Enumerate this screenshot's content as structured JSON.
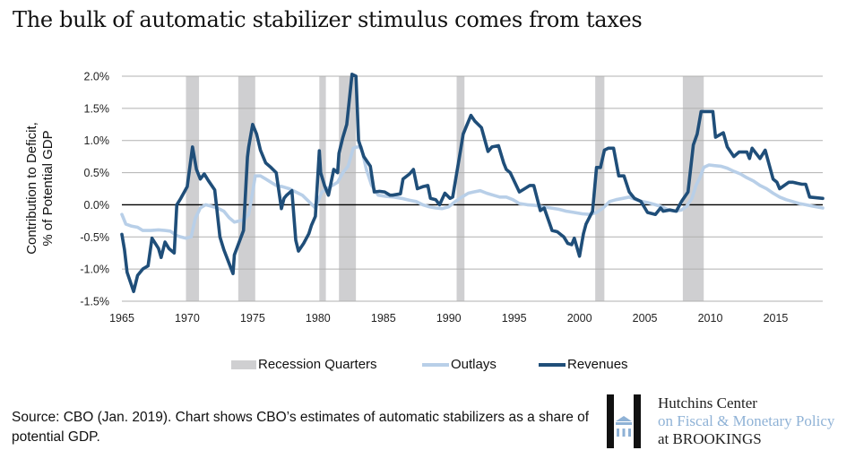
{
  "title": "The bulk of automatic stabilizer stimulus comes from taxes",
  "source_note": "Source: CBO (Jan. 2019). Chart shows CBO’s estimates of automatic stabilizers as a share of potential GDP.",
  "logo": {
    "line1": "Hutchins Center",
    "line2": "on Fiscal & Monetary Policy",
    "line3": "at BROOKINGS",
    "mark_icon": "hutchins-h-building-icon"
  },
  "colors": {
    "revenues": "#1f4e79",
    "outlays": "#b8cfe8",
    "recession": "#cfcfd1",
    "grid": "#b0b0b0",
    "zero_line": "#000000"
  },
  "chart_data": {
    "type": "line",
    "title": "The bulk of automatic stabilizer stimulus comes from taxes",
    "xlabel": "",
    "ylabel": "Contribution to Deficit, % of Potential GDP",
    "ylabel_lines": [
      "Contribution to Deficit,",
      "% of Potential GDP"
    ],
    "xlim": [
      1965,
      2018.6
    ],
    "ylim": [
      -1.5,
      2.0
    ],
    "grid": true,
    "legend_position": "bottom",
    "x_ticks": [
      1965,
      1970,
      1975,
      1980,
      1985,
      1990,
      1995,
      2000,
      2005,
      2010,
      2015
    ],
    "x_tick_labels": [
      "1965",
      "1970",
      "1975",
      "1980",
      "1985",
      "1990",
      "1995",
      "2000",
      "2005",
      "2010",
      "2015"
    ],
    "y_ticks": [
      2.0,
      1.5,
      1.0,
      0.5,
      0.0,
      -0.5,
      -1.0,
      -1.5
    ],
    "y_tick_labels": [
      "2.0%",
      "1.5%",
      "1.0%",
      "0.5%",
      "0.0%",
      "-0.5%",
      "-1.0%",
      "-1.5%"
    ],
    "legend": [
      "Recession Quarters",
      "Outlays",
      "Revenues"
    ],
    "recessions": [
      {
        "start": 1969.9,
        "end": 1970.9
      },
      {
        "start": 1973.9,
        "end": 1975.2
      },
      {
        "start": 1980.1,
        "end": 1980.6
      },
      {
        "start": 1981.6,
        "end": 1982.9
      },
      {
        "start": 1990.6,
        "end": 1991.2
      },
      {
        "start": 2001.2,
        "end": 2001.9
      },
      {
        "start": 2007.9,
        "end": 2009.5
      }
    ],
    "series": [
      {
        "name": "Outlays",
        "x": [
          1965.0,
          1965.3,
          1965.7,
          1966.2,
          1966.6,
          1967.2,
          1967.8,
          1968.3,
          1968.7,
          1969.2,
          1969.5,
          1969.9,
          1970.3,
          1970.6,
          1971.0,
          1971.4,
          1971.8,
          1972.3,
          1972.8,
          1973.2,
          1973.6,
          1974.0,
          1974.4,
          1974.7,
          1975.0,
          1975.2,
          1975.6,
          1976.0,
          1976.4,
          1976.8,
          1977.3,
          1977.8,
          1978.3,
          1978.8,
          1979.3,
          1979.8,
          1980.3,
          1980.7,
          1981.1,
          1981.5,
          1981.9,
          1982.3,
          1982.7,
          1983.0,
          1983.3,
          1983.7,
          1984.1,
          1984.6,
          1985.2,
          1985.8,
          1986.4,
          1987.0,
          1987.5,
          1988.0,
          1988.5,
          1989.0,
          1989.5,
          1990.0,
          1990.5,
          1991.0,
          1991.5,
          1991.9,
          1992.4,
          1992.9,
          1993.4,
          1993.9,
          1994.4,
          1994.9,
          1995.4,
          1996.0,
          1996.6,
          1997.2,
          1997.8,
          1998.4,
          1999.0,
          1999.6,
          2000.2,
          2000.8,
          2001.3,
          2001.8,
          2002.3,
          2002.8,
          2003.3,
          2003.8,
          2004.3,
          2004.8,
          2005.3,
          2005.8,
          2006.3,
          2006.8,
          2007.3,
          2007.8,
          2008.2,
          2008.6,
          2008.9,
          2009.2,
          2009.5,
          2009.9,
          2010.3,
          2010.8,
          2011.3,
          2011.8,
          2012.3,
          2012.8,
          2013.3,
          2013.8,
          2014.3,
          2014.8,
          2015.3,
          2015.8,
          2016.3,
          2016.8,
          2017.3,
          2017.8,
          2018.6
        ],
        "values": [
          -0.15,
          -0.3,
          -0.33,
          -0.35,
          -0.4,
          -0.4,
          -0.39,
          -0.4,
          -0.41,
          -0.48,
          -0.5,
          -0.52,
          -0.5,
          -0.22,
          -0.05,
          0.0,
          -0.02,
          -0.05,
          -0.1,
          -0.2,
          -0.27,
          -0.25,
          -0.22,
          -0.15,
          0.2,
          0.45,
          0.45,
          0.4,
          0.35,
          0.3,
          0.28,
          0.25,
          0.2,
          0.15,
          0.05,
          -0.05,
          0.2,
          0.25,
          0.3,
          0.35,
          0.5,
          0.6,
          0.88,
          0.9,
          0.9,
          0.55,
          0.3,
          0.15,
          0.13,
          0.12,
          0.1,
          0.07,
          0.05,
          0.0,
          -0.03,
          -0.05,
          -0.06,
          -0.03,
          0.05,
          0.12,
          0.18,
          0.2,
          0.22,
          0.18,
          0.15,
          0.12,
          0.12,
          0.08,
          0.02,
          0.0,
          -0.01,
          -0.03,
          -0.05,
          -0.07,
          -0.1,
          -0.12,
          -0.14,
          -0.15,
          -0.12,
          -0.05,
          0.05,
          0.08,
          0.1,
          0.12,
          0.08,
          0.05,
          0.03,
          0.0,
          -0.03,
          -0.08,
          -0.1,
          -0.08,
          -0.02,
          0.1,
          0.3,
          0.42,
          0.58,
          0.62,
          0.61,
          0.6,
          0.57,
          0.52,
          0.48,
          0.42,
          0.37,
          0.3,
          0.25,
          0.18,
          0.12,
          0.08,
          0.05,
          0.02,
          0.0,
          -0.02,
          -0.05
        ]
      },
      {
        "name": "Revenues",
        "x": [
          1965.0,
          1965.2,
          1965.4,
          1965.9,
          1966.2,
          1966.6,
          1967.0,
          1967.3,
          1967.8,
          1968.0,
          1968.3,
          1968.6,
          1969.0,
          1969.2,
          1969.5,
          1970.0,
          1970.4,
          1970.7,
          1971.0,
          1971.3,
          1971.6,
          1972.1,
          1972.5,
          1972.8,
          1973.5,
          1973.6,
          1974.3,
          1974.6,
          1974.7,
          1975.0,
          1975.3,
          1975.6,
          1976.0,
          1976.4,
          1976.8,
          1977.2,
          1977.4,
          1977.6,
          1978.0,
          1978.3,
          1978.5,
          1978.9,
          1979.3,
          1979.5,
          1979.8,
          1980.1,
          1980.2,
          1980.5,
          1980.8,
          1981.2,
          1981.5,
          1981.6,
          1981.9,
          1982.2,
          1982.6,
          1982.9,
          1983.1,
          1983.5,
          1984.0,
          1984.3,
          1984.7,
          1985.1,
          1985.5,
          1985.7,
          1986.3,
          1986.5,
          1987.0,
          1987.3,
          1987.6,
          1988.0,
          1988.4,
          1988.6,
          1989.0,
          1989.3,
          1989.7,
          1990.1,
          1990.3,
          1990.9,
          1991.1,
          1991.7,
          1992.0,
          1992.5,
          1993.0,
          1993.3,
          1993.8,
          1994.2,
          1994.4,
          1994.7,
          1995.4,
          1995.8,
          1996.2,
          1996.5,
          1997.0,
          1997.3,
          1997.9,
          1998.3,
          1998.8,
          1999.1,
          1999.4,
          1999.6,
          2000.0,
          2000.3,
          2000.5,
          2001.0,
          2001.3,
          2001.6,
          2001.9,
          2002.2,
          2002.6,
          2003.0,
          2003.4,
          2003.8,
          2004.2,
          2004.7,
          2005.2,
          2005.8,
          2006.2,
          2006.4,
          2006.9,
          2007.4,
          2007.8,
          2008.3,
          2008.7,
          2009.0,
          2009.3,
          2009.5,
          2010.2,
          2010.4,
          2011.0,
          2011.3,
          2011.8,
          2012.2,
          2012.8,
          2013.0,
          2013.2,
          2013.8,
          2014.2,
          2014.8,
          2015.1,
          2015.3,
          2016.0,
          2016.3,
          2017.0,
          2017.3,
          2017.6,
          2018.6
        ],
        "values": [
          -0.46,
          -0.7,
          -1.05,
          -1.35,
          -1.1,
          -1.0,
          -0.95,
          -0.52,
          -0.68,
          -0.82,
          -0.58,
          -0.68,
          -0.75,
          0.0,
          0.1,
          0.28,
          0.9,
          0.55,
          0.4,
          0.48,
          0.38,
          0.23,
          -0.5,
          -0.7,
          -1.07,
          -0.78,
          -0.4,
          0.74,
          0.9,
          1.25,
          1.1,
          0.85,
          0.65,
          0.58,
          0.5,
          -0.06,
          0.1,
          0.15,
          0.22,
          -0.55,
          -0.72,
          -0.6,
          -0.45,
          -0.32,
          -0.18,
          0.84,
          0.5,
          0.3,
          0.15,
          0.55,
          0.5,
          0.8,
          1.05,
          1.25,
          2.03,
          2.0,
          1.0,
          0.75,
          0.6,
          0.2,
          0.21,
          0.2,
          0.15,
          0.15,
          0.17,
          0.4,
          0.48,
          0.55,
          0.25,
          0.28,
          0.3,
          0.1,
          0.08,
          0.0,
          0.18,
          0.1,
          0.12,
          0.85,
          1.1,
          1.39,
          1.3,
          1.2,
          0.83,
          0.9,
          0.92,
          0.65,
          0.55,
          0.5,
          0.2,
          0.25,
          0.3,
          0.3,
          -0.09,
          -0.05,
          -0.4,
          -0.42,
          -0.5,
          -0.6,
          -0.62,
          -0.52,
          -0.8,
          -0.45,
          -0.3,
          -0.1,
          0.58,
          0.58,
          0.85,
          0.88,
          0.88,
          0.45,
          0.45,
          0.2,
          0.1,
          0.05,
          -0.12,
          -0.15,
          -0.05,
          -0.1,
          -0.08,
          -0.1,
          0.05,
          0.2,
          0.93,
          1.1,
          1.45,
          1.45,
          1.45,
          1.05,
          1.12,
          0.9,
          0.75,
          0.82,
          0.82,
          0.72,
          0.88,
          0.72,
          0.85,
          0.4,
          0.35,
          0.25,
          0.35,
          0.35,
          0.32,
          0.32,
          0.12,
          0.1
        ]
      }
    ]
  }
}
